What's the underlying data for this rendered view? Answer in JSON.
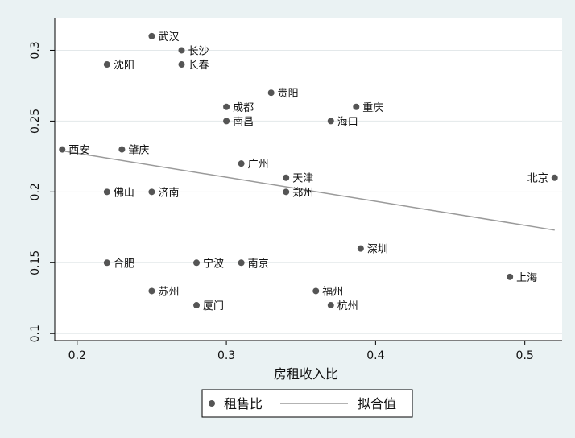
{
  "chart_data": {
    "type": "scatter",
    "title": "",
    "xlabel": "房租收入比",
    "ylabel": "",
    "xlim": [
      0.185,
      0.525
    ],
    "ylim": [
      0.095,
      0.323
    ],
    "xticks": [
      0.2,
      0.3,
      0.4,
      0.5
    ],
    "xtick_labels": [
      "0.2",
      "0.3",
      "0.4",
      "0.5"
    ],
    "yticks": [
      0.1,
      0.15,
      0.2,
      0.25,
      0.3
    ],
    "ytick_labels": [
      "0.1",
      "0.15",
      "0.2",
      "0.25",
      "0.3"
    ],
    "grid": true,
    "legend_position": "bottom",
    "series": [
      {
        "name": "租售比",
        "kind": "scatter",
        "color": "#555555",
        "points": [
          {
            "label": "武汉",
            "x": 0.25,
            "y": 0.31,
            "label_side": "right"
          },
          {
            "label": "长沙",
            "x": 0.27,
            "y": 0.3,
            "label_side": "right"
          },
          {
            "label": "沈阳",
            "x": 0.22,
            "y": 0.29,
            "label_side": "right"
          },
          {
            "label": "长春",
            "x": 0.27,
            "y": 0.29,
            "label_side": "right"
          },
          {
            "label": "贵阳",
            "x": 0.33,
            "y": 0.27,
            "label_side": "right"
          },
          {
            "label": "成都",
            "x": 0.3,
            "y": 0.26,
            "label_side": "right"
          },
          {
            "label": "重庆",
            "x": 0.387,
            "y": 0.26,
            "label_side": "right"
          },
          {
            "label": "南昌",
            "x": 0.3,
            "y": 0.25,
            "label_side": "right"
          },
          {
            "label": "海口",
            "x": 0.37,
            "y": 0.25,
            "label_side": "right"
          },
          {
            "label": "西安",
            "x": 0.19,
            "y": 0.23,
            "label_side": "right"
          },
          {
            "label": "肇庆",
            "x": 0.23,
            "y": 0.23,
            "label_side": "right"
          },
          {
            "label": "广州",
            "x": 0.31,
            "y": 0.22,
            "label_side": "right"
          },
          {
            "label": "北京",
            "x": 0.52,
            "y": 0.21,
            "label_side": "left"
          },
          {
            "label": "天津",
            "x": 0.34,
            "y": 0.21,
            "label_side": "right"
          },
          {
            "label": "郑州",
            "x": 0.34,
            "y": 0.2,
            "label_side": "right"
          },
          {
            "label": "佛山",
            "x": 0.22,
            "y": 0.2,
            "label_side": "right"
          },
          {
            "label": "济南",
            "x": 0.25,
            "y": 0.2,
            "label_side": "right"
          },
          {
            "label": "深圳",
            "x": 0.39,
            "y": 0.16,
            "label_side": "right"
          },
          {
            "label": "合肥",
            "x": 0.22,
            "y": 0.15,
            "label_side": "right"
          },
          {
            "label": "宁波",
            "x": 0.28,
            "y": 0.15,
            "label_side": "right"
          },
          {
            "label": "南京",
            "x": 0.31,
            "y": 0.15,
            "label_side": "right"
          },
          {
            "label": "上海",
            "x": 0.49,
            "y": 0.14,
            "label_side": "right"
          },
          {
            "label": "苏州",
            "x": 0.25,
            "y": 0.13,
            "label_side": "right"
          },
          {
            "label": "福州",
            "x": 0.36,
            "y": 0.13,
            "label_side": "right"
          },
          {
            "label": "厦门",
            "x": 0.28,
            "y": 0.12,
            "label_side": "right"
          },
          {
            "label": "杭州",
            "x": 0.37,
            "y": 0.12,
            "label_side": "right"
          }
        ]
      },
      {
        "name": "拟合值",
        "kind": "line",
        "color": "#9a9a9a",
        "x": [
          0.19,
          0.52
        ],
        "y": [
          0.229,
          0.173
        ]
      }
    ]
  }
}
